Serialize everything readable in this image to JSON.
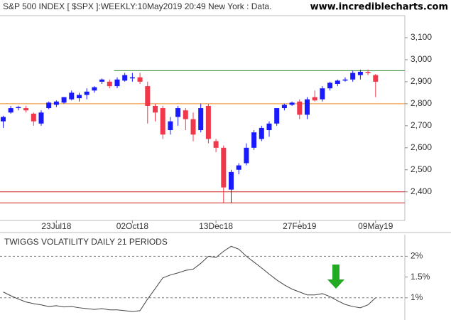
{
  "chart_data": [
    {
      "type": "candlestick",
      "title": "S&P 500 INDEX [ $SPX ]:WEEKLY:10May2019 20:49 New York : Data.",
      "watermark": "www.incrediblecharts.com",
      "categories": [
        null,
        null,
        null,
        null,
        null,
        null,
        null,
        "23Jul18",
        null,
        null,
        null,
        null,
        null,
        null,
        null,
        null,
        null,
        "02Oct18",
        null,
        null,
        null,
        null,
        null,
        null,
        null,
        null,
        null,
        null,
        "13Dec18",
        null,
        null,
        null,
        null,
        null,
        null,
        null,
        null,
        null,
        null,
        "27Feb19",
        null,
        null,
        null,
        null,
        null,
        null,
        null,
        null,
        null,
        "09May19"
      ],
      "open": [
        2720,
        2760,
        2780,
        2780,
        2755,
        2710,
        2780,
        2795,
        2805,
        2820,
        2825,
        2840,
        2860,
        2900,
        2900,
        2880,
        2905,
        2915,
        2920,
        2880,
        2790,
        2780,
        2680,
        2740,
        2770,
        2730,
        2680,
        2790,
        2630,
        2600,
        2410,
        2500,
        2530,
        2600,
        2640,
        2680,
        2710,
        2780,
        2795,
        2810,
        2750,
        2830,
        2820,
        2870,
        2890,
        2905,
        2910,
        2930,
        2945,
        2930
      ],
      "high": [
        2745,
        2790,
        2790,
        2790,
        2760,
        2770,
        2810,
        2815,
        2830,
        2860,
        2850,
        2870,
        2880,
        2915,
        2910,
        2920,
        2940,
        2940,
        2940,
        2900,
        2800,
        2790,
        2740,
        2790,
        2780,
        2760,
        2800,
        2800,
        2640,
        2610,
        2500,
        2530,
        2620,
        2680,
        2700,
        2720,
        2780,
        2800,
        2810,
        2820,
        2830,
        2860,
        2880,
        2900,
        2910,
        2920,
        2950,
        2955,
        2955,
        2935
      ],
      "low": [
        2690,
        2755,
        2770,
        2760,
        2700,
        2700,
        2775,
        2785,
        2800,
        2815,
        2810,
        2820,
        2850,
        2890,
        2870,
        2870,
        2900,
        2900,
        2890,
        2710,
        2720,
        2640,
        2660,
        2700,
        2680,
        2630,
        2670,
        2620,
        2580,
        2350,
        2350,
        2480,
        2520,
        2590,
        2630,
        2650,
        2700,
        2770,
        2790,
        2730,
        2730,
        2810,
        2810,
        2860,
        2880,
        2900,
        2900,
        2910,
        2930,
        2830
      ],
      "close": [
        2740,
        2780,
        2785,
        2770,
        2720,
        2760,
        2805,
        2810,
        2830,
        2850,
        2840,
        2855,
        2875,
        2910,
        2880,
        2910,
        2930,
        2920,
        2900,
        2790,
        2760,
        2660,
        2720,
        2780,
        2730,
        2660,
        2780,
        2640,
        2600,
        2420,
        2490,
        2520,
        2600,
        2670,
        2690,
        2710,
        2780,
        2795,
        2805,
        2750,
        2820,
        2815,
        2870,
        2895,
        2905,
        2910,
        2940,
        2945,
        2940,
        2900
      ],
      "up_color": "#1a1aff",
      "down_color": "#f0384a",
      "ylim": [
        2270,
        3200
      ],
      "yticks": [
        {
          "value": 2400,
          "label": "2,400"
        },
        {
          "value": 2500,
          "label": "2,500"
        },
        {
          "value": 2600,
          "label": "2,600"
        },
        {
          "value": 2700,
          "label": "2,700"
        },
        {
          "value": 2800,
          "label": "2,800"
        },
        {
          "value": 2900,
          "label": "2,900"
        },
        {
          "value": 3000,
          "label": "3,000"
        },
        {
          "value": 3100,
          "label": "3,100"
        }
      ],
      "hlines": [
        {
          "value": 2950,
          "color": "#2e8b2e",
          "from_index": 15
        },
        {
          "value": 2800,
          "color": "#f08c1e",
          "from_index": 0
        },
        {
          "value": 2400,
          "color": "#cc2222",
          "from_index": 0
        },
        {
          "value": 2350,
          "color": "#cc2222",
          "from_index": 0
        }
      ]
    },
    {
      "type": "line",
      "title": "TWIGGS VOLATILITY DAILY 21 PERIODS",
      "color": "#444444",
      "values": [
        1.14,
        1.05,
        0.97,
        0.9,
        0.86,
        0.83,
        0.79,
        0.81,
        0.78,
        0.79,
        0.76,
        0.74,
        0.72,
        0.74,
        0.71,
        0.71,
        0.69,
        0.67,
        0.69,
        0.97,
        1.22,
        1.48,
        1.55,
        1.6,
        1.66,
        1.69,
        1.83,
        2.0,
        1.97,
        2.12,
        2.24,
        2.17,
        2.0,
        1.86,
        1.72,
        1.57,
        1.43,
        1.31,
        1.21,
        1.14,
        1.07,
        1.07,
        1.1,
        1.03,
        0.93,
        0.84,
        0.79,
        0.76,
        0.83,
        1.0
      ],
      "ylim": [
        0.5,
        2.52
      ],
      "yticks": [
        {
          "value": 2,
          "label": "2%"
        },
        {
          "value": 1.5,
          "label": "1.5%"
        },
        {
          "value": 1,
          "label": "1%"
        }
      ],
      "grid_lines": [
        2,
        1
      ]
    }
  ]
}
